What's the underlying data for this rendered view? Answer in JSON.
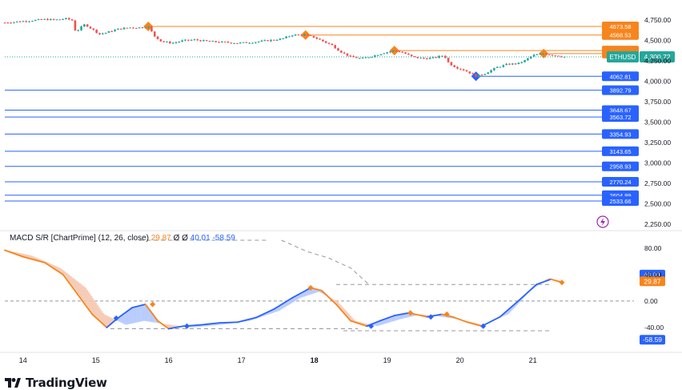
{
  "colors": {
    "up": "#26a69a",
    "down": "#ef5350",
    "resistance": "#f7841c",
    "support": "#2962ff",
    "macd_line_orange": "#f7841c",
    "macd_line_blue": "#2962ff",
    "price_tag": "#26a69a",
    "signal_dashed": "#9598a1",
    "lightning": "#9c27b0"
  },
  "icons": {
    "lightning": "lightning-bolt-icon",
    "logo": "tradingview-logo-icon"
  },
  "symbol": {
    "ticker": "ETHUSD",
    "last_price": "4,300.72"
  },
  "branding": {
    "name": "TradingView"
  },
  "macd": {
    "title": "MACD S/R [ChartPrime] (12, 26, close)",
    "value1": "29.87",
    "value2": "Ø",
    "value3": "Ø",
    "value4": "40.01",
    "value5": "-58.59",
    "axis_ticks": [
      "80.00",
      "40.00",
      "0.00",
      "-40.00"
    ],
    "tag_blue": "40.01",
    "tag_orange": "29.87",
    "tag_bottom": "-58.59"
  },
  "chart_data": {
    "type": "line",
    "price_axis_ticks": [
      "4,750.00",
      "4,500.00",
      "4,250.00",
      "4,000.00",
      "3,750.00",
      "3,500.00",
      "3,250.00",
      "3,000.00",
      "2,750.00",
      "2,500.00",
      "2,250.00"
    ],
    "price_axis_values": [
      4750,
      4500,
      4250,
      4000,
      3750,
      3500,
      3250,
      3000,
      2750,
      2500,
      2250
    ],
    "ylim": [
      2220,
      4880
    ],
    "x_ticks": [
      "14",
      "15",
      "16",
      "17",
      "18",
      "19",
      "20",
      "21"
    ],
    "x_tick_days": [
      14,
      15,
      16,
      17,
      18,
      19,
      20,
      21
    ],
    "xlim": [
      13.75,
      21.95
    ],
    "last_price": 4300.72,
    "resistance_levels": [
      {
        "label": "4673.58",
        "value": 4673.58,
        "from_day": 15.72
      },
      {
        "label": "4568.53",
        "value": 4568.53,
        "from_day": 17.88
      },
      {
        "label": "4378.33",
        "value": 4378.33,
        "from_day": 19.1
      },
      {
        "label": "4341",
        "value": 4341,
        "from_day": 21.15
      }
    ],
    "support_levels": [
      {
        "label": "4062.81",
        "value": 4062.81,
        "from_day": 20.22
      },
      {
        "label": "3892.79",
        "value": 3892.79,
        "from_day": 13.75
      },
      {
        "label": "3648.67",
        "value": 3648.67,
        "from_day": 13.75
      },
      {
        "label": "3563.72",
        "value": 3563.72,
        "from_day": 13.75
      },
      {
        "label": "3354.93",
        "value": 3354.93,
        "from_day": 13.75
      },
      {
        "label": "3143.65",
        "value": 3143.65,
        "from_day": 13.75
      },
      {
        "label": "2958.93",
        "value": 2958.93,
        "from_day": 13.75
      },
      {
        "label": "2770.24",
        "value": 2770.24,
        "from_day": 13.75
      },
      {
        "label": "2604.99",
        "value": 2604.99,
        "from_day": 13.75
      },
      {
        "label": "2533.66",
        "value": 2533.66,
        "from_day": 13.75
      }
    ],
    "price_path": [
      [
        13.75,
        4720
      ],
      [
        13.9,
        4730
      ],
      [
        14.1,
        4745
      ],
      [
        14.3,
        4760
      ],
      [
        14.45,
        4755
      ],
      [
        14.6,
        4770
      ],
      [
        14.7,
        4740
      ],
      [
        14.72,
        4600
      ],
      [
        14.78,
        4650
      ],
      [
        14.85,
        4700
      ],
      [
        14.95,
        4640
      ],
      [
        15.05,
        4580
      ],
      [
        15.15,
        4600
      ],
      [
        15.3,
        4640
      ],
      [
        15.45,
        4660
      ],
      [
        15.6,
        4660
      ],
      [
        15.72,
        4673
      ],
      [
        15.8,
        4560
      ],
      [
        15.9,
        4490
      ],
      [
        16.05,
        4470
      ],
      [
        16.2,
        4500
      ],
      [
        16.35,
        4510
      ],
      [
        16.55,
        4490
      ],
      [
        16.75,
        4480
      ],
      [
        16.95,
        4470
      ],
      [
        17.15,
        4480
      ],
      [
        17.35,
        4500
      ],
      [
        17.55,
        4520
      ],
      [
        17.7,
        4570
      ],
      [
        17.88,
        4568
      ],
      [
        18.0,
        4540
      ],
      [
        18.1,
        4500
      ],
      [
        18.25,
        4440
      ],
      [
        18.35,
        4370
      ],
      [
        18.5,
        4300
      ],
      [
        18.65,
        4280
      ],
      [
        18.8,
        4310
      ],
      [
        18.95,
        4350
      ],
      [
        19.1,
        4378
      ],
      [
        19.2,
        4360
      ],
      [
        19.35,
        4300
      ],
      [
        19.5,
        4280
      ],
      [
        19.65,
        4290
      ],
      [
        19.78,
        4320
      ],
      [
        19.85,
        4220
      ],
      [
        19.95,
        4170
      ],
      [
        20.05,
        4140
      ],
      [
        20.15,
        4100
      ],
      [
        20.22,
        4062
      ],
      [
        20.35,
        4100
      ],
      [
        20.5,
        4170
      ],
      [
        20.65,
        4210
      ],
      [
        20.8,
        4220
      ],
      [
        20.9,
        4260
      ],
      [
        21.0,
        4320
      ],
      [
        21.15,
        4341
      ],
      [
        21.3,
        4320
      ],
      [
        21.45,
        4300
      ]
    ],
    "macd_series": {
      "name": "MACD",
      "points": [
        [
          13.75,
          77
        ],
        [
          14.0,
          67
        ],
        [
          14.3,
          58
        ],
        [
          14.55,
          40
        ],
        [
          14.75,
          10
        ],
        [
          14.95,
          -20
        ],
        [
          15.15,
          -40
        ],
        [
          15.3,
          -26
        ],
        [
          15.5,
          -10
        ],
        [
          15.68,
          -5
        ],
        [
          15.85,
          -30
        ],
        [
          16.0,
          -42
        ],
        [
          16.2,
          -38
        ],
        [
          16.45,
          -36
        ],
        [
          16.7,
          -33
        ],
        [
          16.95,
          -32
        ],
        [
          17.2,
          -25
        ],
        [
          17.45,
          -12
        ],
        [
          17.7,
          5
        ],
        [
          17.95,
          20
        ],
        [
          18.1,
          16
        ],
        [
          18.3,
          -5
        ],
        [
          18.5,
          -30
        ],
        [
          18.72,
          -38
        ],
        [
          18.9,
          -30
        ],
        [
          19.1,
          -22
        ],
        [
          19.3,
          -18
        ],
        [
          19.55,
          -24
        ],
        [
          19.75,
          -20
        ],
        [
          19.9,
          -24
        ],
        [
          20.1,
          -32
        ],
        [
          20.3,
          -38
        ],
        [
          20.55,
          -24
        ],
        [
          20.8,
          0
        ],
        [
          21.05,
          25
        ],
        [
          21.25,
          33
        ],
        [
          21.4,
          28
        ]
      ],
      "cross_markers": [
        {
          "day": 15.28,
          "value": -26,
          "kind": "bullish"
        },
        {
          "day": 15.78,
          "value": -5,
          "kind": "bearish"
        },
        {
          "day": 16.25,
          "value": -38,
          "kind": "bullish"
        },
        {
          "day": 17.95,
          "value": 20,
          "kind": "bearish"
        },
        {
          "day": 18.78,
          "value": -38,
          "kind": "bullish"
        },
        {
          "day": 19.32,
          "value": -18,
          "kind": "bearish"
        },
        {
          "day": 19.6,
          "value": -24,
          "kind": "bullish"
        },
        {
          "day": 19.82,
          "value": -20,
          "kind": "bearish"
        },
        {
          "day": 20.32,
          "value": -38,
          "kind": "bullish"
        },
        {
          "day": 21.4,
          "value": 28,
          "kind": "bearish"
        }
      ]
    },
    "signal_series": {
      "points": [
        [
          13.75,
          77
        ],
        [
          14.1,
          69
        ],
        [
          14.5,
          50
        ],
        [
          14.85,
          20
        ],
        [
          15.1,
          -20
        ],
        [
          15.4,
          -36
        ],
        [
          15.65,
          -30
        ],
        [
          15.95,
          -35
        ],
        [
          16.3,
          -40
        ],
        [
          16.7,
          -36
        ],
        [
          17.1,
          -30
        ],
        [
          17.5,
          -15
        ],
        [
          17.8,
          5
        ],
        [
          18.05,
          14
        ],
        [
          18.3,
          0
        ],
        [
          18.55,
          -30
        ],
        [
          18.85,
          -38
        ],
        [
          19.15,
          -28
        ],
        [
          19.45,
          -20
        ],
        [
          19.75,
          -24
        ],
        [
          20.0,
          -28
        ],
        [
          20.3,
          -36
        ],
        [
          20.65,
          -20
        ],
        [
          20.95,
          15
        ],
        [
          21.2,
          35
        ],
        [
          21.4,
          30
        ]
      ]
    },
    "macd_ylim": [
      -68,
      92
    ],
    "resistance_dash_levels": [
      {
        "value": 92,
        "from_day": 15.6,
        "to_day": 17.35
      },
      {
        "value": 25,
        "from_day": 18.3,
        "to_day": 21.25
      },
      {
        "value": -42,
        "from_day": 15.2,
        "to_day": 18.6
      },
      {
        "value": -45,
        "from_day": 18.4,
        "to_day": 21.25
      }
    ]
  }
}
